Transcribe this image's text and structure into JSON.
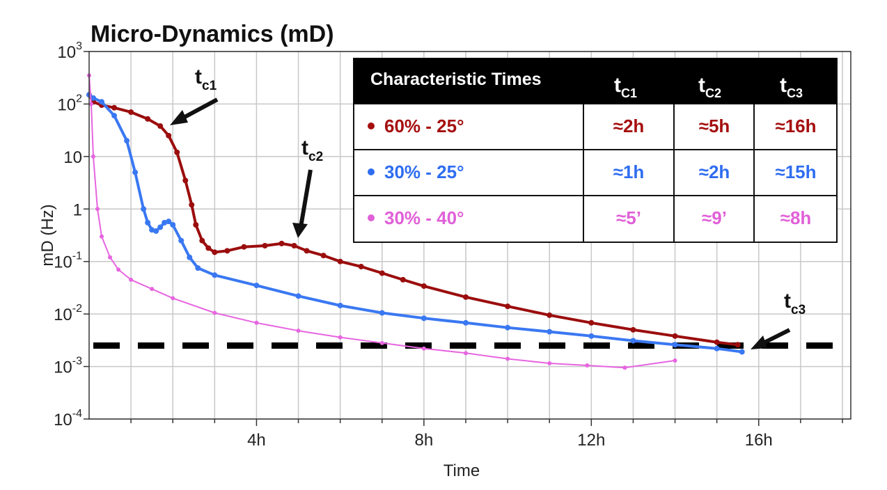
{
  "chart_data": {
    "type": "line",
    "title": "Micro-Dynamics (mD)",
    "xlabel": "Time",
    "ylabel": "mD (Hz)",
    "yscale": "log",
    "xlim": [
      0,
      18.2
    ],
    "ylim": [
      0.0001,
      1000
    ],
    "x_ticks": [
      {
        "value": 4,
        "label": "4h"
      },
      {
        "value": 8,
        "label": "8h"
      },
      {
        "value": 12,
        "label": "12h"
      },
      {
        "value": 16,
        "label": "16h"
      }
    ],
    "y_ticks": [
      {
        "value": 1000,
        "base": "10",
        "exp": "3"
      },
      {
        "value": 100,
        "base": "10",
        "exp": "2"
      },
      {
        "value": 10,
        "base": "10",
        "exp": ""
      },
      {
        "value": 1,
        "base": "1",
        "exp": ""
      },
      {
        "value": 0.1,
        "base": "10",
        "exp": "-1"
      },
      {
        "value": 0.01,
        "base": "10",
        "exp": "-2"
      },
      {
        "value": 0.001,
        "base": "10",
        "exp": "-3"
      },
      {
        "value": 0.0001,
        "base": "10",
        "exp": "-4"
      }
    ],
    "grid": true,
    "threshold": {
      "y": 0.0025,
      "style": "dashed"
    },
    "series": [
      {
        "name": "60% - 25°",
        "color": "#9b0d0d",
        "x": [
          0.0,
          0.1,
          0.3,
          0.6,
          1.0,
          1.4,
          1.7,
          1.9,
          2.1,
          2.3,
          2.45,
          2.55,
          2.7,
          2.85,
          3.0,
          3.3,
          3.7,
          4.2,
          4.6,
          4.9,
          5.2,
          5.6,
          6.0,
          6.5,
          7.0,
          7.5,
          8.0,
          9.0,
          10.0,
          11.0,
          12.0,
          13.0,
          14.0,
          15.0,
          15.5
        ],
        "values": [
          150,
          110,
          95,
          85,
          70,
          52,
          38,
          25,
          12,
          3.5,
          1.2,
          0.5,
          0.25,
          0.18,
          0.15,
          0.16,
          0.19,
          0.2,
          0.22,
          0.2,
          0.16,
          0.13,
          0.1,
          0.08,
          0.06,
          0.045,
          0.034,
          0.021,
          0.014,
          0.0095,
          0.0068,
          0.005,
          0.0038,
          0.0029,
          0.0026
        ]
      },
      {
        "name": "30% - 25°",
        "color": "#3a78f2",
        "x": [
          0.0,
          0.1,
          0.3,
          0.6,
          0.9,
          1.1,
          1.3,
          1.4,
          1.5,
          1.6,
          1.7,
          1.8,
          1.9,
          2.0,
          2.2,
          2.4,
          2.6,
          3.0,
          4.0,
          5.0,
          6.0,
          7.0,
          8.0,
          9.0,
          10.0,
          11.0,
          12.0,
          13.0,
          14.0,
          15.0,
          15.6
        ],
        "values": [
          150,
          130,
          110,
          60,
          20,
          5,
          1,
          0.55,
          0.4,
          0.38,
          0.45,
          0.55,
          0.58,
          0.5,
          0.25,
          0.12,
          0.075,
          0.055,
          0.035,
          0.022,
          0.0145,
          0.0105,
          0.0083,
          0.0068,
          0.0055,
          0.0046,
          0.0038,
          0.0031,
          0.0026,
          0.0022,
          0.0019
        ]
      },
      {
        "name": "30% - 40°",
        "color": "#e765e0",
        "x": [
          0.0,
          0.05,
          0.1,
          0.2,
          0.3,
          0.5,
          0.7,
          1.0,
          1.5,
          2.0,
          3.0,
          4.0,
          5.0,
          6.0,
          7.0,
          8.0,
          9.0,
          10.0,
          11.0,
          11.9,
          12.8,
          14.0
        ],
        "values": [
          350,
          100,
          10,
          1,
          0.3,
          0.12,
          0.07,
          0.045,
          0.03,
          0.02,
          0.0105,
          0.0068,
          0.0048,
          0.0036,
          0.0028,
          0.0022,
          0.0018,
          0.0014,
          0.00115,
          0.00105,
          0.00095,
          0.0013
        ]
      }
    ],
    "annotations": [
      {
        "main": "t",
        "sub": "c1"
      },
      {
        "main": "t",
        "sub": "c2"
      },
      {
        "main": "t",
        "sub": "c3"
      }
    ],
    "table": {
      "header": [
        "Characteristic Times",
        "t",
        "t",
        "t"
      ],
      "header_subs": [
        "",
        "C1",
        "C2",
        "C3"
      ],
      "rows": [
        {
          "label": "60% - 25°",
          "color": "#a50f0f",
          "values": [
            "≈2h",
            "≈5h",
            "≈16h"
          ]
        },
        {
          "label": "30% - 25°",
          "color": "#2f6df0",
          "values": [
            "≈1h",
            "≈2h",
            "≈15h"
          ]
        },
        {
          "label": "30% - 40°",
          "color": "#e060d8",
          "values": [
            "≈5’",
            "≈9’",
            "≈8h"
          ]
        }
      ]
    }
  }
}
